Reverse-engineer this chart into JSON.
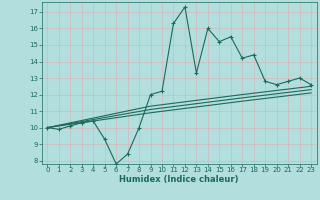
{
  "title": "",
  "xlabel": "Humidex (Indice chaleur)",
  "bg_color": "#b2dede",
  "grid_color": "#c8e8e8",
  "line_color": "#1a6b5a",
  "xlim": [
    -0.5,
    23.5
  ],
  "ylim": [
    7.8,
    17.6
  ],
  "yticks": [
    8,
    9,
    10,
    11,
    12,
    13,
    14,
    15,
    16,
    17
  ],
  "xticks": [
    0,
    1,
    2,
    3,
    4,
    5,
    6,
    7,
    8,
    9,
    10,
    11,
    12,
    13,
    14,
    15,
    16,
    17,
    18,
    19,
    20,
    21,
    22,
    23
  ],
  "main_x": [
    0,
    1,
    2,
    3,
    4,
    5,
    6,
    7,
    8,
    9,
    10,
    11,
    12,
    13,
    14,
    15,
    16,
    17,
    18,
    19,
    20,
    21,
    22,
    23
  ],
  "main_y": [
    10.0,
    9.9,
    10.1,
    10.3,
    10.4,
    9.3,
    7.8,
    8.4,
    10.0,
    12.0,
    12.2,
    16.3,
    17.3,
    13.3,
    16.0,
    15.2,
    15.5,
    14.2,
    14.4,
    12.8,
    12.6,
    12.8,
    13.0,
    12.6
  ],
  "trend1_x": [
    0,
    9,
    17,
    23
  ],
  "trend1_y": [
    10.0,
    11.1,
    11.8,
    12.3
  ],
  "trend2_x": [
    0,
    9,
    17,
    23
  ],
  "trend2_y": [
    10.0,
    11.3,
    12.0,
    12.5
  ],
  "trend3_x": [
    0,
    9,
    17,
    23
  ],
  "trend3_y": [
    10.0,
    10.9,
    11.6,
    12.1
  ]
}
